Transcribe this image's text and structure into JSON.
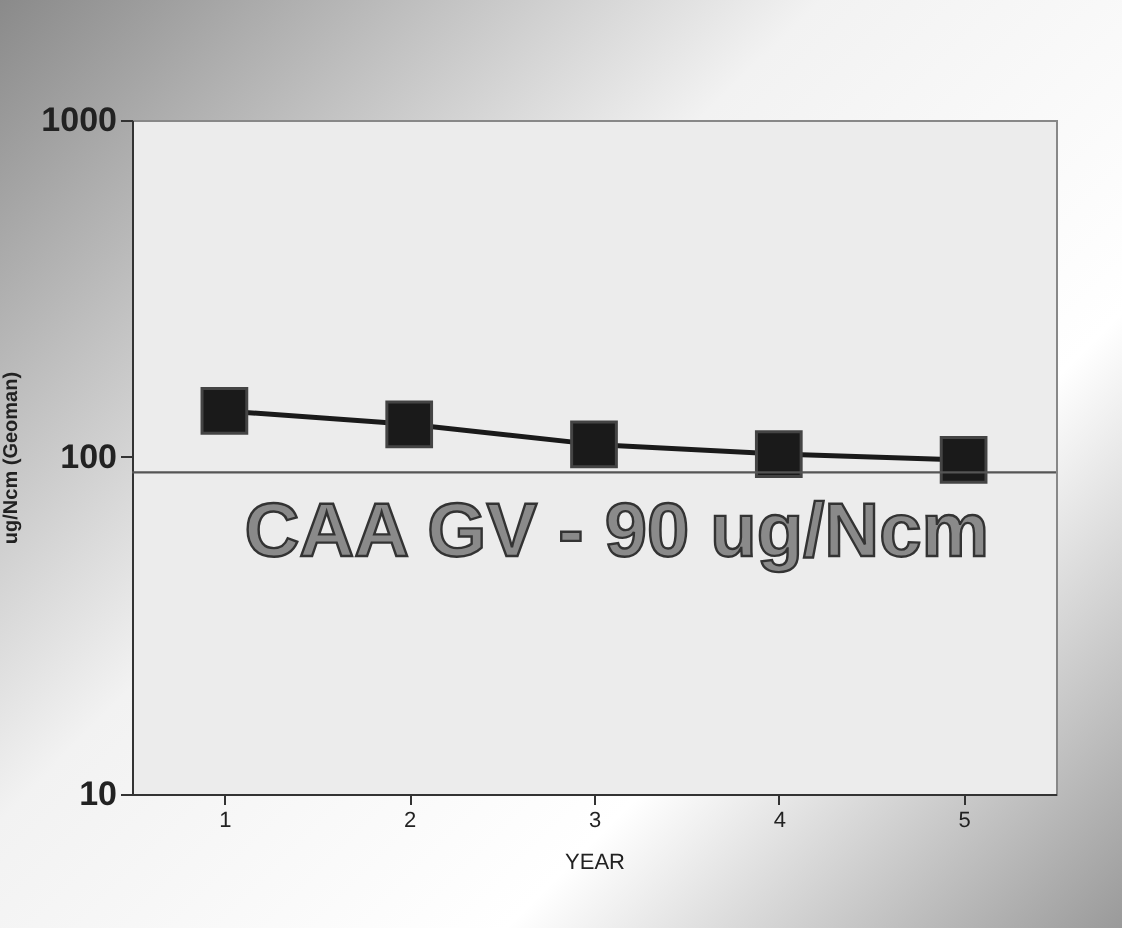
{
  "chart_data": {
    "type": "line",
    "xlabel": "YEAR",
    "ylabel": "ug/Ncm (Geoman)",
    "categories": [
      "1",
      "2",
      "3",
      "4",
      "5"
    ],
    "series": [
      {
        "color": "#1a1a1a",
        "values": [
          137,
          125,
          109,
          102,
          98
        ]
      }
    ],
    "log": "y",
    "ylim": [
      10,
      1000
    ],
    "yticks": [
      10,
      100,
      1000
    ],
    "grid": false,
    "legend": false,
    "marker": "square",
    "line_style": "solid",
    "ref_lines": [
      {
        "axis": "y",
        "value": 90,
        "label": "CAA GV - 90 ug/Ncm",
        "color": "#555555"
      }
    ]
  }
}
